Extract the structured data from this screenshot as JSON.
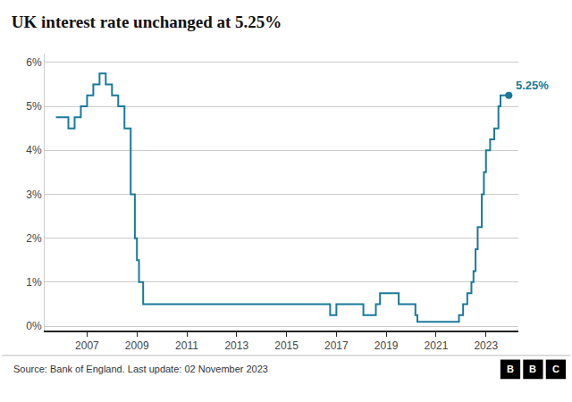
{
  "chart_data": {
    "type": "line",
    "line_style": "step",
    "title": "UK interest rate unchanged at 5.25%",
    "source": "Source: Bank of England. Last update: 02 November 2023",
    "logo": "BBC",
    "annotation": "5.25%",
    "color": "#1a7a9a",
    "grid": "y",
    "x": [
      2005.75,
      2006.25,
      2006.5,
      2006.75,
      2007.0,
      2007.25,
      2007.5,
      2007.75,
      2008.0,
      2008.25,
      2008.5,
      2008.75,
      2008.917,
      2009.0,
      2009.083,
      2009.25,
      2016.5,
      2016.75,
      2017.0,
      2017.75,
      2018.0,
      2018.083,
      2018.583,
      2018.75,
      2019.5,
      2020.17,
      2020.25,
      2021.917,
      2021.917,
      2022.083,
      2022.25,
      2022.417,
      2022.5,
      2022.583,
      2022.667,
      2022.75,
      2022.833,
      2022.917,
      2023.0,
      2023.167,
      2023.333,
      2023.5,
      2023.583,
      2023.917
    ],
    "values": [
      4.75,
      4.5,
      4.75,
      5.0,
      5.25,
      5.5,
      5.75,
      5.5,
      5.25,
      5.0,
      4.5,
      3.0,
      2.0,
      1.5,
      1.0,
      0.5,
      0.5,
      0.25,
      0.5,
      0.5,
      0.5,
      0.25,
      0.5,
      0.75,
      0.5,
      0.25,
      0.1,
      0.1,
      0.25,
      0.5,
      0.75,
      1.0,
      1.25,
      1.75,
      2.25,
      2.25,
      3.0,
      3.5,
      4.0,
      4.25,
      4.5,
      5.0,
      5.25,
      5.25
    ],
    "xlim": [
      2005.3,
      2024.3
    ],
    "xticks": [
      2007,
      2009,
      2011,
      2013,
      2015,
      2017,
      2019,
      2021,
      2023
    ],
    "ylim": [
      -0.1,
      6.2
    ],
    "yticks": [
      {
        "value": 0,
        "label": "0%"
      },
      {
        "value": 1,
        "label": "1%"
      },
      {
        "value": 2,
        "label": "2%"
      },
      {
        "value": 3,
        "label": "3%"
      },
      {
        "value": 4,
        "label": "4%"
      },
      {
        "value": 5,
        "label": "5%"
      },
      {
        "value": 6,
        "label": "6%"
      }
    ]
  }
}
